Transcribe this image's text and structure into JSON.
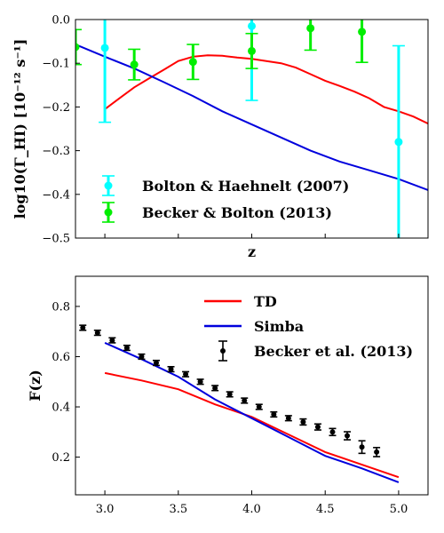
{
  "chart_data": [
    {
      "type": "line",
      "ylabel": "log10(Γ_HI) [10⁻¹² s⁻¹]",
      "xlabel": "z",
      "xlim": [
        2.8,
        5.2
      ],
      "ylim": [
        -0.5,
        0.0
      ],
      "yticks": [
        {
          "value": -0.5,
          "label": "−0.5"
        },
        {
          "value": -0.4,
          "label": "−0.4"
        },
        {
          "value": -0.3,
          "label": "−0.3"
        },
        {
          "value": -0.2,
          "label": "−0.2"
        },
        {
          "value": -0.1,
          "label": "−0.1"
        },
        {
          "value": 0.0,
          "label": "0.0"
        }
      ],
      "xticks": [
        3.0,
        3.5,
        4.0,
        4.5,
        5.0
      ],
      "series": [
        {
          "kind": "line",
          "color": "#ff0000",
          "x": [
            3.0,
            3.1,
            3.2,
            3.3,
            3.4,
            3.5,
            3.6,
            3.7,
            3.8,
            3.9,
            4.0,
            4.1,
            4.2,
            4.3,
            4.4,
            4.5,
            4.6,
            4.7,
            4.8,
            4.9,
            5.0,
            5.1,
            5.2
          ],
          "y": [
            -0.205,
            -0.18,
            -0.155,
            -0.135,
            -0.115,
            -0.095,
            -0.085,
            -0.082,
            -0.083,
            -0.087,
            -0.09,
            -0.095,
            -0.1,
            -0.11,
            -0.125,
            -0.14,
            -0.152,
            -0.165,
            -0.18,
            -0.2,
            -0.21,
            -0.222,
            -0.238
          ]
        },
        {
          "kind": "line",
          "color": "#0000dd",
          "x": [
            2.8,
            3.0,
            3.2,
            3.4,
            3.6,
            3.8,
            4.0,
            4.2,
            4.4,
            4.6,
            4.8,
            5.0,
            5.2
          ],
          "y": [
            -0.057,
            -0.085,
            -0.112,
            -0.143,
            -0.175,
            -0.21,
            -0.24,
            -0.27,
            -0.3,
            -0.325,
            -0.345,
            -0.365,
            -0.39
          ]
        },
        {
          "name": "Bolton & Haehnelt (2007)",
          "kind": "errorbar",
          "color": "#00ffff",
          "x": [
            3.0,
            4.0,
            5.0
          ],
          "y": [
            -0.065,
            -0.015,
            -0.28
          ],
          "yerr_low": [
            0.17,
            0.17,
            0.25
          ],
          "yerr_high": [
            0.17,
            0.17,
            0.22
          ]
        },
        {
          "name": "Becker & Bolton (2013)",
          "kind": "errorbar",
          "color": "#00ee00",
          "x": [
            2.8,
            3.2,
            3.6,
            4.0,
            4.4,
            4.75
          ],
          "y": [
            -0.063,
            -0.103,
            -0.097,
            -0.072,
            -0.02,
            -0.028
          ],
          "yerr_low": [
            0.04,
            0.035,
            0.04,
            0.04,
            0.05,
            0.07
          ],
          "yerr_high": [
            0.04,
            0.035,
            0.04,
            0.04,
            0.05,
            0.07
          ]
        }
      ],
      "legend": "lower-left"
    },
    {
      "type": "line",
      "ylabel": "F(z)",
      "xlim": [
        2.8,
        5.2
      ],
      "ylim": [
        0.05,
        0.92
      ],
      "yticks": [
        {
          "value": 0.2,
          "label": "0.2"
        },
        {
          "value": 0.4,
          "label": "0.4"
        },
        {
          "value": 0.6,
          "label": "0.6"
        },
        {
          "value": 0.8,
          "label": "0.8"
        }
      ],
      "xticks": [
        {
          "value": 3.0,
          "label": "3.0"
        },
        {
          "value": 3.5,
          "label": "3.5"
        },
        {
          "value": 4.0,
          "label": "4.0"
        },
        {
          "value": 4.5,
          "label": "4.5"
        },
        {
          "value": 5.0,
          "label": "5.0"
        }
      ],
      "series": [
        {
          "name": "TD",
          "kind": "line",
          "color": "#ff0000",
          "x": [
            3.0,
            3.25,
            3.5,
            3.75,
            4.0,
            4.25,
            4.5,
            4.75,
            5.0
          ],
          "y": [
            0.535,
            0.505,
            0.47,
            0.41,
            0.36,
            0.29,
            0.22,
            0.17,
            0.12
          ]
        },
        {
          "name": "Simba",
          "kind": "line",
          "color": "#0000dd",
          "x": [
            3.0,
            3.25,
            3.5,
            3.75,
            4.0,
            4.25,
            4.5,
            4.75,
            5.0
          ],
          "y": [
            0.655,
            0.59,
            0.52,
            0.43,
            0.355,
            0.28,
            0.205,
            0.155,
            0.1
          ]
        },
        {
          "name": "Becker et al. (2013)",
          "kind": "errorbar",
          "color": "#000000",
          "x": [
            2.85,
            2.95,
            3.05,
            3.15,
            3.25,
            3.35,
            3.45,
            3.55,
            3.65,
            3.75,
            3.85,
            3.95,
            4.05,
            4.15,
            4.25,
            4.35,
            4.45,
            4.55,
            4.65,
            4.75,
            4.85
          ],
          "y": [
            0.715,
            0.695,
            0.665,
            0.635,
            0.6,
            0.575,
            0.55,
            0.53,
            0.5,
            0.475,
            0.45,
            0.425,
            0.4,
            0.37,
            0.355,
            0.34,
            0.32,
            0.3,
            0.285,
            0.24,
            0.22
          ],
          "yerr": [
            0.01,
            0.01,
            0.01,
            0.01,
            0.01,
            0.01,
            0.01,
            0.01,
            0.01,
            0.01,
            0.01,
            0.01,
            0.01,
            0.01,
            0.01,
            0.012,
            0.012,
            0.014,
            0.016,
            0.025,
            0.018
          ]
        }
      ],
      "legend": "upper-right"
    }
  ]
}
